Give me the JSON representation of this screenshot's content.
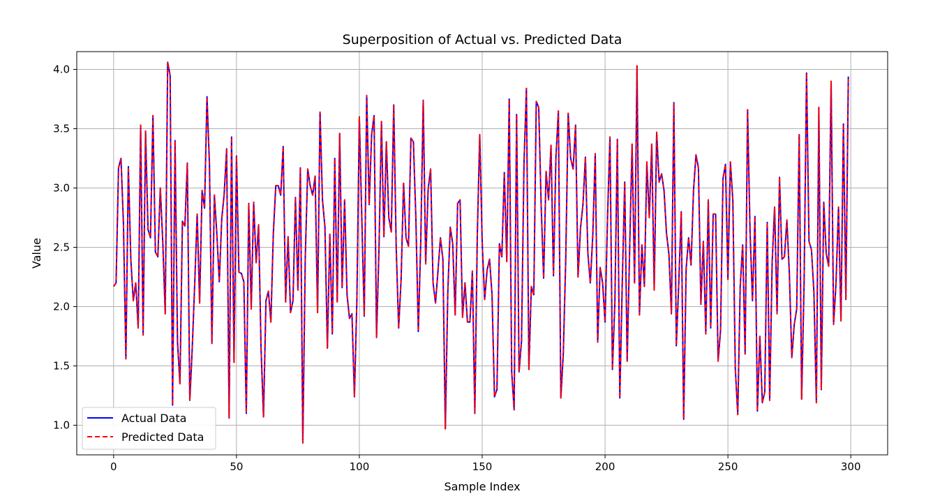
{
  "chart_data": {
    "type": "line",
    "title": "Superposition of Actual vs. Predicted Data",
    "xlabel": "Sample Index",
    "ylabel": "Value",
    "xlim": [
      -15,
      315
    ],
    "ylim": [
      0.75,
      4.15
    ],
    "xticks": [
      0,
      50,
      100,
      150,
      200,
      250,
      300
    ],
    "xtick_labels": [
      "0",
      "50",
      "100",
      "150",
      "200",
      "250",
      "300"
    ],
    "yticks": [
      1.0,
      1.5,
      2.0,
      2.5,
      3.0,
      3.5,
      4.0
    ],
    "ytick_labels": [
      "1.0",
      "1.5",
      "2.0",
      "2.5",
      "3.0",
      "3.5",
      "4.0"
    ],
    "grid": true,
    "legend_position": "lower-left",
    "series": [
      {
        "name": "Actual Data",
        "color": "#0000ff",
        "style": "solid",
        "x": [
          0,
          1,
          2,
          3,
          4,
          5,
          6,
          7,
          8,
          9,
          10,
          11,
          12,
          13,
          14,
          15,
          16,
          17,
          18,
          19,
          20,
          21,
          22,
          23,
          24,
          25,
          26,
          27,
          28,
          29,
          30,
          31,
          32,
          33,
          34,
          35,
          36,
          37,
          38,
          39,
          40,
          41,
          42,
          43,
          44,
          45,
          46,
          47,
          48,
          49,
          50,
          51,
          52,
          53,
          54,
          55,
          56,
          57,
          58,
          59,
          60,
          61,
          62,
          63,
          64,
          65,
          66,
          67,
          68,
          69,
          70,
          71,
          72,
          73,
          74,
          75,
          76,
          77,
          78,
          79,
          80,
          81,
          82,
          83,
          84,
          85,
          86,
          87,
          88,
          89,
          90,
          91,
          92,
          93,
          94,
          95,
          96,
          97,
          98,
          99,
          100,
          101,
          102,
          103,
          104,
          105,
          106,
          107,
          108,
          109,
          110,
          111,
          112,
          113,
          114,
          115,
          116,
          117,
          118,
          119,
          120,
          121,
          122,
          123,
          124,
          125,
          126,
          127,
          128,
          129,
          130,
          131,
          132,
          133,
          134,
          135,
          136,
          137,
          138,
          139,
          140,
          141,
          142,
          143,
          144,
          145,
          146,
          147,
          148,
          149,
          150,
          151,
          152,
          153,
          154,
          155,
          156,
          157,
          158,
          159,
          160,
          161,
          162,
          163,
          164,
          165,
          166,
          167,
          168,
          169,
          170,
          171,
          172,
          173,
          174,
          175,
          176,
          177,
          178,
          179,
          180,
          181,
          182,
          183,
          184,
          185,
          186,
          187,
          188,
          189,
          190,
          191,
          192,
          193,
          194,
          195,
          196,
          197,
          198,
          199,
          200,
          201,
          202,
          203,
          204,
          205,
          206,
          207,
          208,
          209,
          210,
          211,
          212,
          213,
          214,
          215,
          216,
          217,
          218,
          219,
          220,
          221,
          222,
          223,
          224,
          225,
          226,
          227,
          228,
          229,
          230,
          231,
          232,
          233,
          234,
          235,
          236,
          237,
          238,
          239,
          240,
          241,
          242,
          243,
          244,
          245,
          246,
          247,
          248,
          249,
          250,
          251,
          252,
          253,
          254,
          255,
          256,
          257,
          258,
          259,
          260,
          261,
          262,
          263,
          264,
          265,
          266,
          267,
          268,
          269,
          270,
          271,
          272,
          273,
          274,
          275,
          276,
          277,
          278,
          279,
          280,
          281,
          282,
          283,
          284,
          285,
          286,
          287,
          288,
          289,
          290,
          291,
          292,
          293,
          294,
          295,
          296,
          297,
          298,
          299
        ],
        "values": [
          2.17,
          2.2,
          3.17,
          3.25,
          2.7,
          1.56,
          3.18,
          2.4,
          2.05,
          2.2,
          1.82,
          3.53,
          1.76,
          3.48,
          2.65,
          2.58,
          3.61,
          2.46,
          2.42,
          3.0,
          2.55,
          1.94,
          4.06,
          3.95,
          1.17,
          3.4,
          1.7,
          1.35,
          2.72,
          2.68,
          3.21,
          1.21,
          1.65,
          2.19,
          2.78,
          2.03,
          2.98,
          2.83,
          3.77,
          3.2,
          1.69,
          2.94,
          2.62,
          2.21,
          2.74,
          2.95,
          3.33,
          1.06,
          3.43,
          1.53,
          3.27,
          2.29,
          2.28,
          2.21,
          1.1,
          2.87,
          1.98,
          2.88,
          2.37,
          2.69,
          1.65,
          1.07,
          2.05,
          2.13,
          1.87,
          2.62,
          3.02,
          3.02,
          2.94,
          3.35,
          2.04,
          2.59,
          1.95,
          2.05,
          2.92,
          2.14,
          3.17,
          0.85,
          2.42,
          3.16,
          3.02,
          2.94,
          3.1,
          1.95,
          3.64,
          2.9,
          2.67,
          1.65,
          2.61,
          1.77,
          3.25,
          2.04,
          3.46,
          2.16,
          2.9,
          2.1,
          1.9,
          1.94,
          1.24,
          2.06,
          3.6,
          2.75,
          1.92,
          3.78,
          2.86,
          3.45,
          3.61,
          1.74,
          2.49,
          3.56,
          2.59,
          3.39,
          2.75,
          2.63,
          3.7,
          2.5,
          1.82,
          2.23,
          3.04,
          2.58,
          2.51,
          3.42,
          3.39,
          2.75,
          1.79,
          2.55,
          3.74,
          2.36,
          2.99,
          3.16,
          2.2,
          2.03,
          2.3,
          2.58,
          2.4,
          0.97,
          2.12,
          2.67,
          2.53,
          1.93,
          2.87,
          2.9,
          1.91,
          2.2,
          1.87,
          1.87,
          2.3,
          1.1,
          2.6,
          3.45,
          2.54,
          2.06,
          2.31,
          2.4,
          2.1,
          1.24,
          1.3,
          2.53,
          2.42,
          3.13,
          2.38,
          3.75,
          1.45,
          1.13,
          3.62,
          1.45,
          1.71,
          3.2,
          3.84,
          1.47,
          2.17,
          2.1,
          3.73,
          3.68,
          2.85,
          2.24,
          3.14,
          2.9,
          3.36,
          2.26,
          3.26,
          3.65,
          1.23,
          1.6,
          2.4,
          3.63,
          3.25,
          3.16,
          3.53,
          2.25,
          2.66,
          2.86,
          3.26,
          2.45,
          2.2,
          2.6,
          3.29,
          1.7,
          2.33,
          2.2,
          1.87,
          2.75,
          3.43,
          1.47,
          2.04,
          3.41,
          1.23,
          2.2,
          3.05,
          1.54,
          2.48,
          3.37,
          2.2,
          4.03,
          1.93,
          2.52,
          2.17,
          3.22,
          2.75,
          3.37,
          2.14,
          3.47,
          3.05,
          3.12,
          2.98,
          2.62,
          2.44,
          1.94,
          3.72,
          1.67,
          2.2,
          2.8,
          1.05,
          2.32,
          2.58,
          2.35,
          2.98,
          3.28,
          3.17,
          2.02,
          2.55,
          1.77,
          2.9,
          1.82,
          2.78,
          2.78,
          1.54,
          1.8,
          3.08,
          3.2,
          2.23,
          3.22,
          2.9,
          1.48,
          1.09,
          2.17,
          2.52,
          1.6,
          3.66,
          2.64,
          2.05,
          2.76,
          1.12,
          1.75,
          1.19,
          1.28,
          2.71,
          1.21,
          2.37,
          2.84,
          1.94,
          3.09,
          2.4,
          2.42,
          2.73,
          2.28,
          1.57,
          1.85,
          1.98,
          3.45,
          1.22,
          2.2,
          3.97,
          2.55,
          2.48,
          2.12,
          1.19,
          3.68,
          1.3,
          2.88,
          2.45,
          2.34,
          3.9,
          1.85,
          2.2,
          2.84,
          1.88,
          3.54,
          2.06,
          3.94
        ]
      },
      {
        "name": "Predicted Data",
        "color": "#ff0000",
        "style": "dashed",
        "x": [
          0,
          1,
          2,
          3,
          4,
          5,
          6,
          7,
          8,
          9,
          10,
          11,
          12,
          13,
          14,
          15,
          16,
          17,
          18,
          19,
          20,
          21,
          22,
          23,
          24,
          25,
          26,
          27,
          28,
          29,
          30,
          31,
          32,
          33,
          34,
          35,
          36,
          37,
          38,
          39,
          40,
          41,
          42,
          43,
          44,
          45,
          46,
          47,
          48,
          49,
          50,
          51,
          52,
          53,
          54,
          55,
          56,
          57,
          58,
          59,
          60,
          61,
          62,
          63,
          64,
          65,
          66,
          67,
          68,
          69,
          70,
          71,
          72,
          73,
          74,
          75,
          76,
          77,
          78,
          79,
          80,
          81,
          82,
          83,
          84,
          85,
          86,
          87,
          88,
          89,
          90,
          91,
          92,
          93,
          94,
          95,
          96,
          97,
          98,
          99,
          100,
          101,
          102,
          103,
          104,
          105,
          106,
          107,
          108,
          109,
          110,
          111,
          112,
          113,
          114,
          115,
          116,
          117,
          118,
          119,
          120,
          121,
          122,
          123,
          124,
          125,
          126,
          127,
          128,
          129,
          130,
          131,
          132,
          133,
          134,
          135,
          136,
          137,
          138,
          139,
          140,
          141,
          142,
          143,
          144,
          145,
          146,
          147,
          148,
          149,
          150,
          151,
          152,
          153,
          154,
          155,
          156,
          157,
          158,
          159,
          160,
          161,
          162,
          163,
          164,
          165,
          166,
          167,
          168,
          169,
          170,
          171,
          172,
          173,
          174,
          175,
          176,
          177,
          178,
          179,
          180,
          181,
          182,
          183,
          184,
          185,
          186,
          187,
          188,
          189,
          190,
          191,
          192,
          193,
          194,
          195,
          196,
          197,
          198,
          199,
          200,
          201,
          202,
          203,
          204,
          205,
          206,
          207,
          208,
          209,
          210,
          211,
          212,
          213,
          214,
          215,
          216,
          217,
          218,
          219,
          220,
          221,
          222,
          223,
          224,
          225,
          226,
          227,
          228,
          229,
          230,
          231,
          232,
          233,
          234,
          235,
          236,
          237,
          238,
          239,
          240,
          241,
          242,
          243,
          244,
          245,
          246,
          247,
          248,
          249,
          250,
          251,
          252,
          253,
          254,
          255,
          256,
          257,
          258,
          259,
          260,
          261,
          262,
          263,
          264,
          265,
          266,
          267,
          268,
          269,
          270,
          271,
          272,
          273,
          274,
          275,
          276,
          277,
          278,
          279,
          280,
          281,
          282,
          283,
          284,
          285,
          286,
          287,
          288,
          289,
          290,
          291,
          292,
          293,
          294,
          295,
          296,
          297,
          298,
          299
        ],
        "values": [
          2.17,
          2.2,
          3.17,
          3.25,
          2.7,
          1.56,
          3.18,
          2.4,
          2.05,
          2.2,
          1.82,
          3.53,
          1.76,
          3.48,
          2.65,
          2.58,
          3.61,
          2.46,
          2.42,
          3.0,
          2.55,
          1.94,
          4.06,
          3.95,
          1.17,
          3.4,
          1.7,
          1.35,
          2.72,
          2.68,
          3.21,
          1.21,
          1.65,
          2.19,
          2.78,
          2.03,
          2.98,
          2.83,
          3.77,
          3.2,
          1.69,
          2.94,
          2.62,
          2.21,
          2.74,
          2.95,
          3.33,
          1.06,
          3.43,
          1.53,
          3.27,
          2.29,
          2.28,
          2.21,
          1.1,
          2.87,
          1.98,
          2.88,
          2.37,
          2.69,
          1.65,
          1.07,
          2.05,
          2.13,
          1.87,
          2.62,
          3.02,
          3.02,
          2.94,
          3.35,
          2.04,
          2.59,
          1.95,
          2.05,
          2.92,
          2.14,
          3.17,
          0.85,
          2.42,
          3.16,
          3.02,
          2.94,
          3.1,
          1.95,
          3.64,
          2.9,
          2.67,
          1.65,
          2.61,
          1.77,
          3.25,
          2.04,
          3.46,
          2.16,
          2.9,
          2.1,
          1.9,
          1.94,
          1.24,
          2.06,
          3.6,
          2.75,
          1.92,
          3.78,
          2.86,
          3.45,
          3.61,
          1.74,
          2.49,
          3.56,
          2.59,
          3.39,
          2.75,
          2.63,
          3.7,
          2.5,
          1.82,
          2.23,
          3.04,
          2.58,
          2.51,
          3.42,
          3.39,
          2.75,
          1.79,
          2.55,
          3.74,
          2.36,
          2.99,
          3.16,
          2.2,
          2.03,
          2.3,
          2.58,
          2.4,
          0.97,
          2.12,
          2.67,
          2.53,
          1.93,
          2.87,
          2.9,
          1.91,
          2.2,
          1.87,
          1.87,
          2.3,
          1.1,
          2.6,
          3.45,
          2.54,
          2.06,
          2.31,
          2.4,
          2.1,
          1.24,
          1.3,
          2.53,
          2.42,
          3.13,
          2.38,
          3.75,
          1.45,
          1.13,
          3.62,
          1.45,
          1.71,
          3.2,
          3.84,
          1.47,
          2.17,
          2.1,
          3.73,
          3.68,
          2.85,
          2.24,
          3.14,
          2.9,
          3.36,
          2.26,
          3.26,
          3.65,
          1.23,
          1.6,
          2.4,
          3.63,
          3.25,
          3.16,
          3.53,
          2.25,
          2.66,
          2.86,
          3.26,
          2.45,
          2.2,
          2.6,
          3.29,
          1.7,
          2.33,
          2.2,
          1.87,
          2.75,
          3.43,
          1.47,
          2.04,
          3.41,
          1.23,
          2.2,
          3.05,
          1.54,
          2.48,
          3.37,
          2.2,
          4.03,
          1.93,
          2.52,
          2.17,
          3.22,
          2.75,
          3.37,
          2.14,
          3.47,
          3.05,
          3.12,
          2.98,
          2.62,
          2.44,
          1.94,
          3.72,
          1.67,
          2.2,
          2.8,
          1.05,
          2.32,
          2.58,
          2.35,
          2.98,
          3.28,
          3.17,
          2.02,
          2.55,
          1.77,
          2.9,
          1.82,
          2.78,
          2.78,
          1.54,
          1.8,
          3.08,
          3.2,
          2.23,
          3.22,
          2.9,
          1.48,
          1.09,
          2.17,
          2.52,
          1.6,
          3.66,
          2.64,
          2.05,
          2.76,
          1.12,
          1.75,
          1.19,
          1.28,
          2.71,
          1.21,
          2.37,
          2.84,
          1.94,
          3.09,
          2.4,
          2.42,
          2.73,
          2.28,
          1.57,
          1.85,
          1.98,
          3.45,
          1.22,
          2.2,
          3.97,
          2.55,
          2.48,
          2.12,
          1.19,
          3.68,
          1.3,
          2.88,
          2.45,
          2.34,
          3.9,
          1.85,
          2.2,
          2.84,
          1.88,
          3.54,
          2.06,
          3.94
        ]
      }
    ]
  }
}
